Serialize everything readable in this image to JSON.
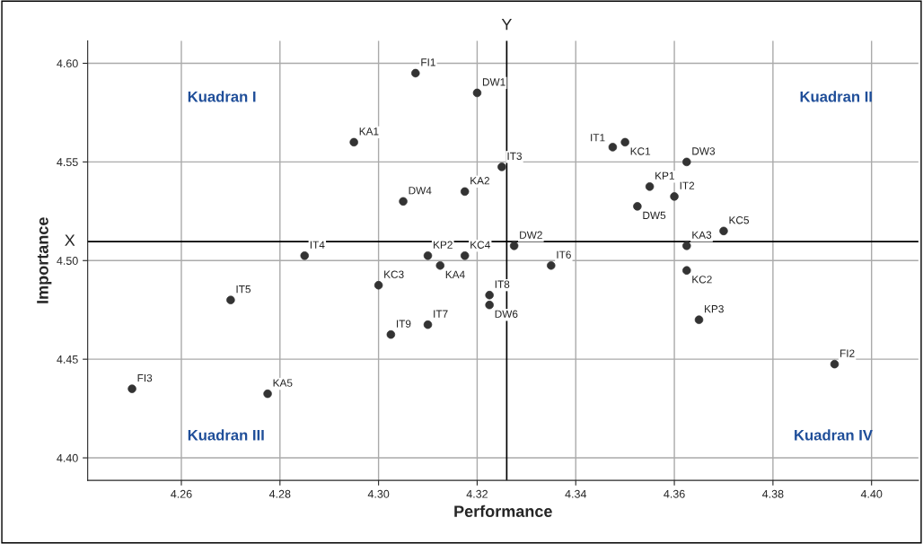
{
  "chart_data": {
    "type": "scatter",
    "xlabel": "Performance",
    "ylabel": "Importance",
    "x": [
      4.3075,
      4.32,
      4.295,
      4.325,
      4.3175,
      4.305,
      4.3475,
      4.35,
      4.3625,
      4.355,
      4.36,
      4.3525,
      4.37,
      4.3625,
      4.3625,
      4.365,
      4.3925,
      4.285,
      4.31,
      4.3175,
      4.3275,
      4.3125,
      4.335,
      4.3,
      4.3225,
      4.3225,
      4.31,
      4.3025,
      4.27,
      4.25,
      4.2775
    ],
    "series": [
      {
        "color": "#333333",
        "values": [
          4.595,
          4.585,
          4.56,
          4.5475,
          4.535,
          4.53,
          4.5575,
          4.56,
          4.55,
          4.5375,
          4.5325,
          4.5275,
          4.515,
          4.5075,
          4.495,
          4.47,
          4.4475,
          4.5025,
          4.5025,
          4.5025,
          4.5075,
          4.4975,
          4.4975,
          4.4875,
          4.4825,
          4.4775,
          4.4675,
          4.4625,
          4.48,
          4.435,
          4.4325
        ],
        "value_labels": [
          "FI1",
          "DW1",
          "KA1",
          "IT3",
          "KA2",
          "DW4",
          "IT1",
          "KC1",
          "DW3",
          "KP1",
          "IT2",
          "DW5",
          "KC5",
          "KA3",
          "KC2",
          "KP3",
          "FI2",
          "IT4",
          "KP2",
          "KC4",
          "DW2",
          "KA4",
          "IT6",
          "KC3",
          "IT8",
          "DW6",
          "IT7",
          "IT9",
          "IT5",
          "FI3",
          "KA5"
        ]
      }
    ],
    "marker": "circle",
    "grid": true,
    "xlim": [
      4.241,
      4.4095
    ],
    "xticks": [
      4.26,
      4.28,
      {
        "value": 4.3,
        "label": "4.30"
      },
      4.32,
      4.34,
      4.36,
      4.38,
      {
        "value": 4.4,
        "label": "4.40"
      }
    ],
    "ylim": [
      4.3886,
      4.6114
    ],
    "yticks": [
      {
        "value": 4.4,
        "label": "4.40"
      },
      4.45,
      {
        "value": 4.5,
        "label": "4.50"
      },
      4.55,
      {
        "value": 4.6,
        "label": "4.60"
      }
    ],
    "ref_lines": [
      {
        "axis": "y",
        "value": 4.5096,
        "label": "X",
        "color": "#000000"
      },
      {
        "axis": "x",
        "value": 4.326,
        "label": "Y",
        "color": "#000000"
      }
    ],
    "annotations": [
      "Kuadran I",
      "Kuadran II",
      "Kuadran III",
      "Kuadran IV"
    ]
  }
}
